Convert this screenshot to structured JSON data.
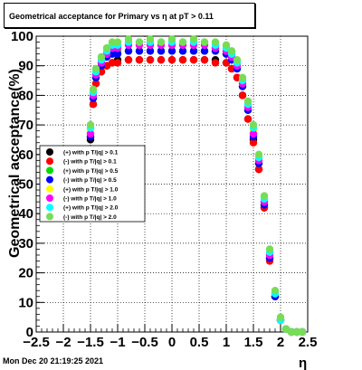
{
  "title": "Geometrical acceptance for Primary vs   η at pT > 0.11",
  "timestamp": "Mon Dec 20 21:19:25 2021",
  "chart_data": {
    "type": "scatter",
    "title": "Geometrical acceptance for Primary vs   η at pT > 0.11",
    "xlabel": "η",
    "ylabel": "Geometrical acceptance(%)",
    "xlim": [
      -2.5,
      2.5
    ],
    "ylim": [
      0,
      100
    ],
    "grid": true,
    "legend_placement": "middle-left",
    "x_ticks": [
      "−2.5",
      "−2",
      "−1.5",
      "−1",
      "−0.5",
      "0",
      "0.5",
      "1",
      "1.5",
      "2",
      "2.5"
    ],
    "y_ticks": [
      "0",
      "10",
      "20",
      "30",
      "40",
      "50",
      "60",
      "70",
      "80",
      "90",
      "100"
    ],
    "series": [
      {
        "name": "(+) with p T/|q| > 0.1",
        "color": "#000000",
        "x": [
          -1.5,
          -1.45,
          -1.4,
          -1.3,
          -1.2,
          -1.1,
          -1.0,
          -0.8,
          -0.6,
          -0.4,
          -0.2,
          0.0,
          0.2,
          0.4,
          0.6,
          0.8,
          1.0,
          1.1,
          1.2,
          1.3,
          1.4,
          1.5,
          1.6,
          1.7,
          1.8,
          1.9,
          2.0,
          2.1,
          2.2,
          2.3,
          2.4
        ],
        "y": [
          65,
          77,
          84,
          88,
          90,
          91,
          92,
          92,
          92,
          92,
          92,
          92,
          92,
          92,
          92,
          92,
          91,
          89,
          86,
          80,
          72,
          65,
          55,
          42,
          25,
          12,
          4,
          1,
          0,
          0,
          0
        ]
      },
      {
        "name": "(-) with p T/|q| > 0.1",
        "color": "#ff0000",
        "x": [
          -1.5,
          -1.45,
          -1.4,
          -1.3,
          -1.2,
          -1.1,
          -1.0,
          -0.8,
          -0.6,
          -0.4,
          -0.2,
          0.0,
          0.2,
          0.4,
          0.6,
          0.8,
          1.0,
          1.1,
          1.2,
          1.3,
          1.4,
          1.5,
          1.6,
          1.7,
          1.8,
          1.9,
          2.0,
          2.1,
          2.2,
          2.3,
          2.4
        ],
        "y": [
          66,
          77,
          84,
          88,
          90,
          91,
          91,
          92,
          92,
          92,
          92,
          92,
          92,
          92,
          92,
          91,
          91,
          89,
          86,
          80,
          72,
          64,
          55,
          42,
          24,
          12,
          4,
          1,
          0,
          0,
          0
        ]
      },
      {
        "name": "(+) with p T/|q| > 0.5",
        "color": "#00dd00",
        "x": [
          -1.5,
          -1.45,
          -1.4,
          -1.3,
          -1.2,
          -1.1,
          -1.0,
          -0.8,
          -0.6,
          -0.4,
          -0.2,
          0.0,
          0.2,
          0.4,
          0.6,
          0.8,
          1.0,
          1.1,
          1.2,
          1.3,
          1.4,
          1.5,
          1.6,
          1.7,
          1.8,
          1.9,
          2.0,
          2.1,
          2.2,
          2.3,
          2.4
        ],
        "y": [
          67,
          79,
          86,
          90,
          93,
          94,
          95,
          95,
          95,
          95,
          95,
          95,
          95,
          95,
          95,
          95,
          94,
          92,
          89,
          83,
          75,
          67,
          57,
          43,
          25,
          12,
          4,
          1,
          0,
          0,
          0
        ]
      },
      {
        "name": "(-) with p T/|q| > 0.5",
        "color": "#0000ff",
        "x": [
          -1.5,
          -1.45,
          -1.4,
          -1.3,
          -1.2,
          -1.1,
          -1.0,
          -0.8,
          -0.6,
          -0.4,
          -0.2,
          0.0,
          0.2,
          0.4,
          0.6,
          0.8,
          1.0,
          1.1,
          1.2,
          1.3,
          1.4,
          1.5,
          1.6,
          1.7,
          1.8,
          1.9,
          2.0,
          2.1,
          2.2,
          2.3,
          2.4
        ],
        "y": [
          66,
          79,
          86,
          90,
          93,
          94,
          94,
          95,
          95,
          95,
          95,
          95,
          95,
          95,
          95,
          95,
          94,
          92,
          89,
          83,
          75,
          66,
          57,
          43,
          25,
          12,
          4,
          1,
          0,
          0,
          0
        ]
      },
      {
        "name": "(+) with p T/|q| > 1.0",
        "color": "#ffff00",
        "x": [
          -1.5,
          -1.45,
          -1.4,
          -1.3,
          -1.2,
          -1.1,
          -1.0,
          -0.8,
          -0.6,
          -0.4,
          -0.2,
          0.0,
          0.2,
          0.4,
          0.6,
          0.8,
          1.0,
          1.1,
          1.2,
          1.3,
          1.4,
          1.5,
          1.6,
          1.7,
          1.8,
          1.9,
          2.0,
          2.1,
          2.2,
          2.3,
          2.4
        ],
        "y": [
          68,
          80,
          87,
          91,
          94,
          96,
          96,
          97,
          97,
          97,
          97,
          97,
          97,
          97,
          97,
          96,
          95,
          93,
          90,
          84,
          76,
          68,
          58,
          44,
          26,
          13,
          4,
          1,
          0,
          0,
          0
        ]
      },
      {
        "name": "(-) with p T/|q| > 1.0",
        "color": "#ff00ff",
        "x": [
          -1.5,
          -1.45,
          -1.4,
          -1.3,
          -1.2,
          -1.1,
          -1.0,
          -0.8,
          -0.6,
          -0.4,
          -0.2,
          0.0,
          0.2,
          0.4,
          0.6,
          0.8,
          1.0,
          1.1,
          1.2,
          1.3,
          1.4,
          1.5,
          1.6,
          1.7,
          1.8,
          1.9,
          2.0,
          2.1,
          2.2,
          2.3,
          2.4
        ],
        "y": [
          67,
          80,
          87,
          91,
          94,
          96,
          96,
          97,
          97,
          97,
          97,
          97,
          97,
          97,
          97,
          96,
          95,
          93,
          90,
          84,
          76,
          67,
          58,
          44,
          26,
          13,
          4,
          1,
          0,
          0,
          0
        ]
      },
      {
        "name": "(+) with p T/|q| > 2.0",
        "color": "#00ffff",
        "x": [
          -1.5,
          -1.45,
          -1.4,
          -1.3,
          -1.2,
          -1.1,
          -1.0,
          -0.8,
          -0.6,
          -0.4,
          -0.2,
          0.0,
          0.2,
          0.4,
          0.6,
          0.8,
          1.0,
          1.1,
          1.2,
          1.3,
          1.4,
          1.5,
          1.6,
          1.7,
          1.8,
          1.9,
          2.0,
          2.1,
          2.2,
          2.3,
          2.4
        ],
        "y": [
          69,
          81,
          88,
          92,
          95,
          97,
          97,
          98,
          98,
          98,
          98,
          98,
          98,
          98,
          98,
          97,
          96,
          94,
          91,
          85,
          77,
          69,
          59,
          45,
          27,
          13,
          4,
          1,
          0,
          0,
          0
        ]
      },
      {
        "name": "(-) with p T/|q| > 2.0",
        "color": "#77dd55",
        "x": [
          -1.5,
          -1.45,
          -1.4,
          -1.3,
          -1.2,
          -1.1,
          -1.0,
          -0.8,
          -0.6,
          -0.4,
          -0.2,
          0.0,
          0.2,
          0.4,
          0.6,
          0.8,
          1.0,
          1.1,
          1.2,
          1.3,
          1.4,
          1.5,
          1.6,
          1.7,
          1.8,
          1.9,
          2.0,
          2.1,
          2.2,
          2.3,
          2.4
        ],
        "y": [
          70,
          82,
          89,
          93,
          96,
          98,
          98,
          99,
          98,
          99,
          98,
          99,
          98,
          99,
          98,
          98,
          97,
          95,
          92,
          86,
          78,
          70,
          60,
          46,
          28,
          14,
          5,
          1,
          0,
          0,
          0
        ]
      }
    ]
  }
}
